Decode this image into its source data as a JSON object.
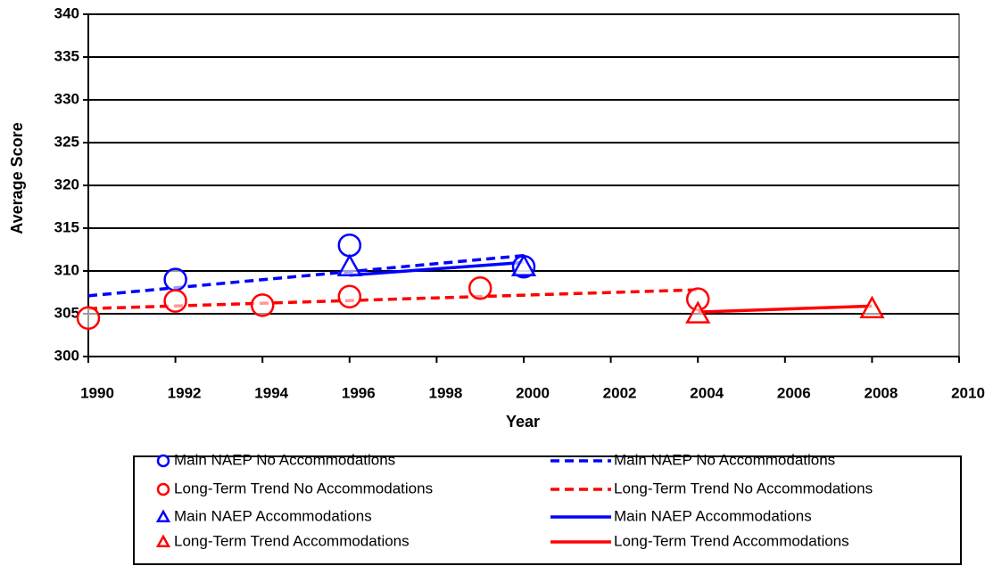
{
  "chart_data": {
    "type": "scatter",
    "x_label": "Year",
    "y_label": "Average Score",
    "xlim": [
      1990,
      2010
    ],
    "xticks": [
      1990,
      1992,
      1994,
      1996,
      1998,
      2000,
      2002,
      2004,
      2006,
      2008,
      2010
    ],
    "ylim": [
      300,
      340
    ],
    "yticks": [
      300,
      305,
      310,
      315,
      320,
      325,
      330,
      335,
      340
    ],
    "grid": true,
    "series": [
      {
        "name": "Main NAEP No Accommodations",
        "color": "#0000ff",
        "marker": "circle",
        "x": [
          1992,
          1996,
          2000
        ],
        "values": [
          309,
          313,
          310.5
        ]
      },
      {
        "name": "Long-Term Trend No Accommodations",
        "color": "#ff0000",
        "marker": "circle",
        "x": [
          1990,
          1992,
          1994,
          1996,
          1999,
          2004
        ],
        "values": [
          304.5,
          306.5,
          306,
          307,
          308,
          306.7
        ]
      },
      {
        "name": "Main NAEP Accommodations",
        "color": "#0000ff",
        "marker": "triangle",
        "x": [
          1996,
          2000
        ],
        "values": [
          310.5,
          310.5
        ]
      },
      {
        "name": "Long-Term Trend Accommodations",
        "color": "#ff0000",
        "marker": "triangle",
        "x": [
          2004,
          2008
        ],
        "values": [
          305,
          305.6
        ]
      },
      {
        "name": "Main NAEP No Accommodations",
        "color": "#0000ff",
        "line": "dashed",
        "x": [
          1990,
          2000
        ],
        "values": [
          307.1,
          311.8
        ]
      },
      {
        "name": "Long-Term Trend No Accommodations",
        "color": "#ff0000",
        "line": "dashed",
        "x": [
          1990,
          2004
        ],
        "values": [
          305.6,
          307.8
        ]
      },
      {
        "name": "Main NAEP Accommodations",
        "color": "#0000ff",
        "line": "solid",
        "x": [
          1996,
          2000
        ],
        "values": [
          309.5,
          311
        ]
      },
      {
        "name": "Long-Term Trend Accommodations",
        "color": "#ff0000",
        "line": "solid",
        "x": [
          2004,
          2008
        ],
        "values": [
          305.2,
          305.9
        ]
      }
    ]
  }
}
